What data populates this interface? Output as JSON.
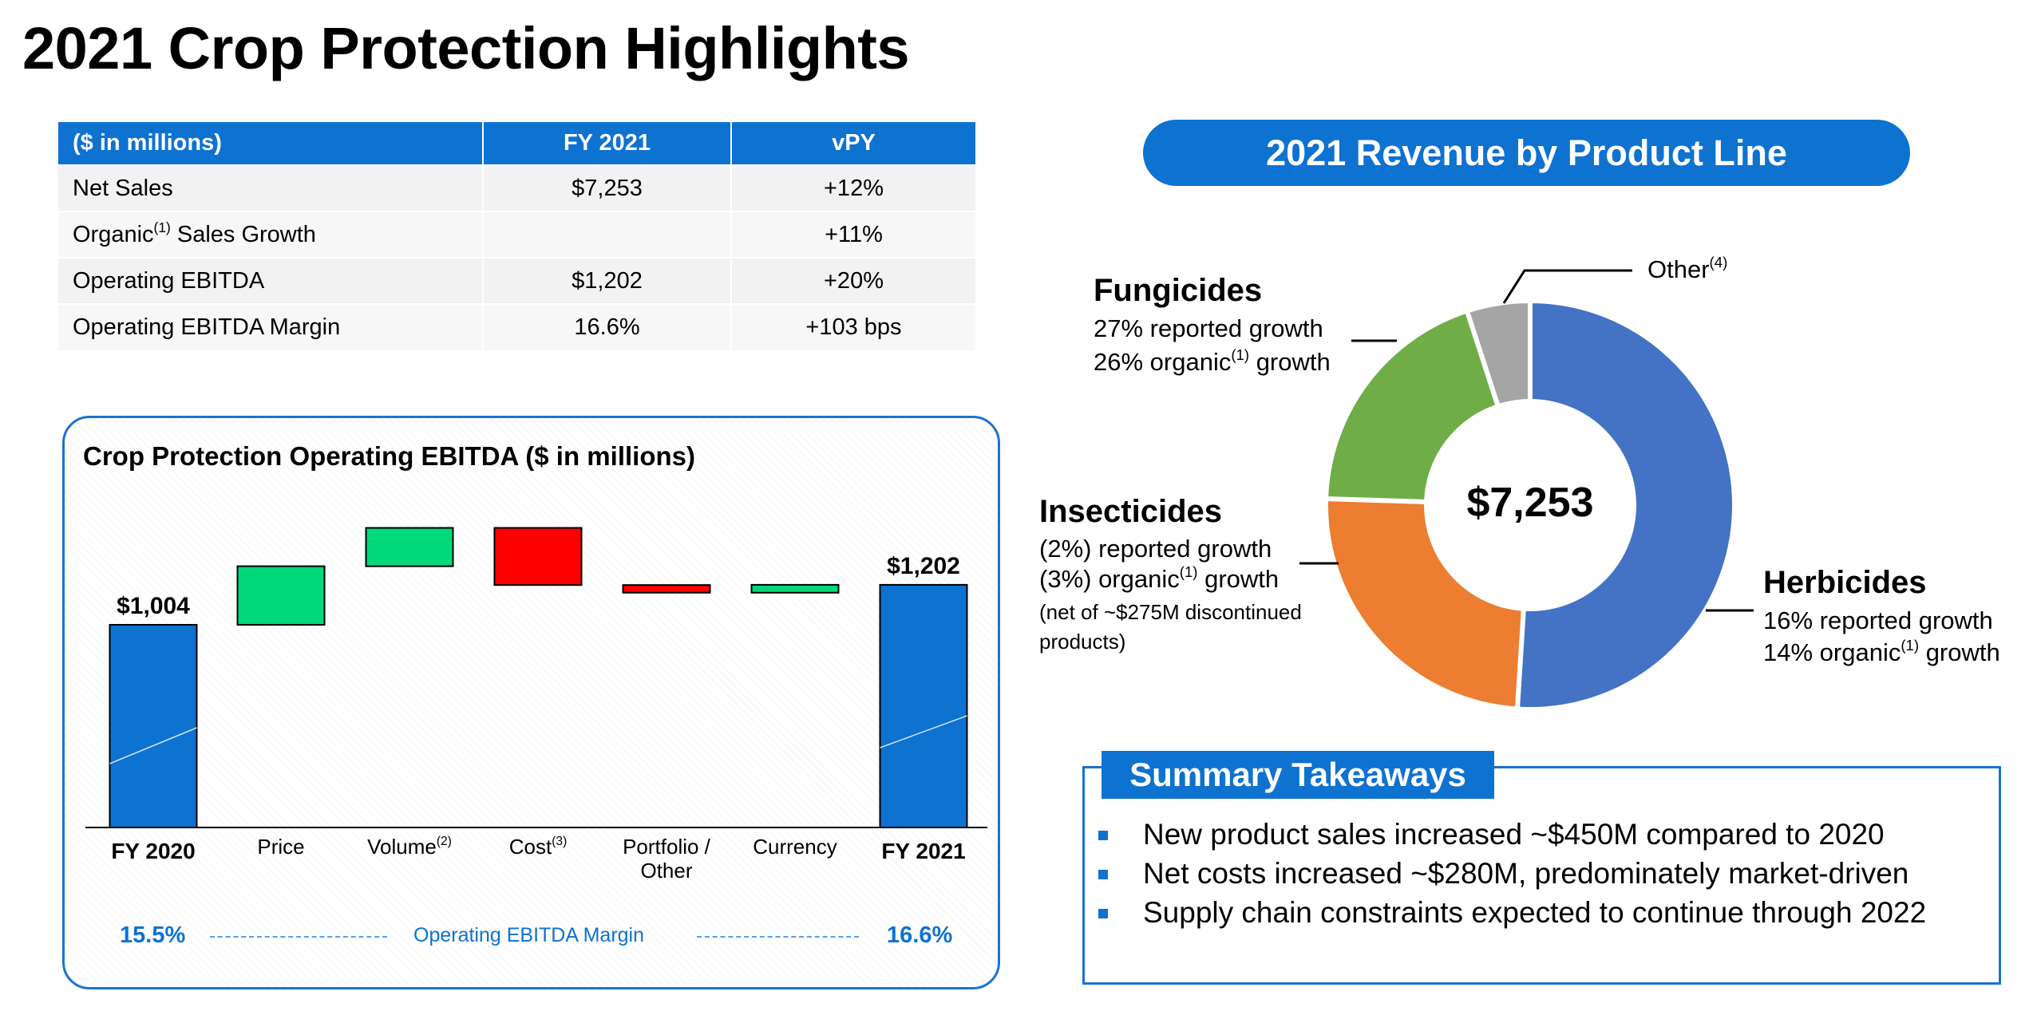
{
  "title": "2021 Crop Protection Highlights",
  "table": {
    "headers": [
      "($ in millions)",
      "FY 2021",
      "vPY"
    ],
    "rows": [
      {
        "label": "Net Sales",
        "sup": "",
        "rest": "",
        "fy2021": "$7,253",
        "vpy": "+12%"
      },
      {
        "label": "Organic",
        "sup": "(1)",
        "rest": " Sales Growth",
        "fy2021": "",
        "vpy": "+11%"
      },
      {
        "label": "Operating EBITDA",
        "sup": "",
        "rest": "",
        "fy2021": "$1,202",
        "vpy": "+20%"
      },
      {
        "label": "Operating EBITDA Margin",
        "sup": "",
        "rest": "",
        "fy2021": "16.6%",
        "vpy": "+103 bps"
      }
    ]
  },
  "chart_data": [
    {
      "type": "waterfall",
      "title": "Crop Protection Operating  EBITDA ($ in millions)",
      "categories": [
        "FY 2020",
        "Price",
        "Volume",
        "Cost",
        "Portfolio / Other",
        "Currency",
        "FY 2021"
      ],
      "category_sups": [
        "",
        "",
        "(2)",
        "(3)",
        "",
        "",
        ""
      ],
      "values": [
        1004,
        290,
        190,
        -283,
        -38,
        39,
        1202
      ],
      "kinds": [
        "total",
        "delta",
        "delta",
        "delta",
        "delta",
        "delta",
        "total"
      ],
      "data_labels": [
        "$1,004",
        "",
        "",
        "",
        "",
        "",
        "$1,202"
      ],
      "colors": {
        "total": "#0e72d1",
        "increase": "#00d97a",
        "decrease": "#ff0000"
      },
      "margin": {
        "start": "15.5%",
        "label": "Operating EBITDA Margin",
        "end": "16.6%"
      }
    },
    {
      "type": "pie",
      "title": "2021 Revenue by Product Line",
      "center_label": "$7,253",
      "slices": [
        {
          "name": "Herbicides",
          "value": 51,
          "color": "#4472c4",
          "lines": [
            "16% reported growth",
            "14% organic",
            "(1)",
            " growth"
          ]
        },
        {
          "name": "Insecticides",
          "value": 24.5,
          "color": "#ed7d31",
          "lines": [
            "(2%) reported growth",
            "(3%) organic",
            "(1)",
            " growth",
            "(net of ~$275M discontinued",
            "products)"
          ]
        },
        {
          "name": "Fungicides",
          "value": 19.5,
          "color": "#70ad47",
          "lines": [
            "27% reported growth",
            "26% organic",
            "(1)",
            " growth"
          ]
        },
        {
          "name": "Other",
          "sup": "(4)",
          "value": 5,
          "color": "#a5a5a5"
        }
      ]
    }
  ],
  "summary": {
    "title": "Summary Takeaways",
    "items": [
      "New product sales increased ~$450M compared to 2020",
      "Net costs increased ~$280M, predominately market-driven",
      "Supply chain constraints expected to continue through 2022"
    ]
  }
}
